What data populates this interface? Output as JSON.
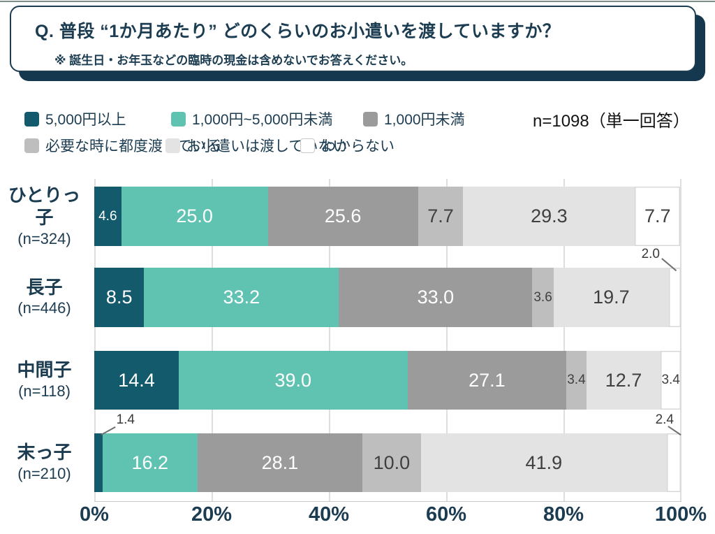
{
  "question_box": {
    "title": "Q. 普段 “1か月あたり” どのくらいのお小遣いを渡していますか？",
    "note": "※ 誕生日・お年玉などの臨時の現金は含めないでお答えください。"
  },
  "survey_note": "n=1098（単一回答）",
  "legend": {
    "items": [
      {
        "label": "5,000円以上",
        "color": "#135a6d",
        "bordered": false
      },
      {
        "label": "1,000円~5,000円未満",
        "color": "#60c3b2",
        "bordered": false
      },
      {
        "label": "1,000円未満",
        "color": "#9b9b9b",
        "bordered": false
      },
      {
        "label": "必要な時に都度渡している",
        "color": "#bebebe",
        "bordered": false
      },
      {
        "label": "お小遣いは渡していない",
        "color": "#e3e3e3",
        "bordered": false
      },
      {
        "label": "わからない",
        "color": "#ffffff",
        "bordered": true
      }
    ]
  },
  "chart_data": {
    "type": "bar",
    "stacked": true,
    "orientation": "horizontal",
    "categories": [
      "ひとりっ子",
      "長子",
      "中間子",
      "末っ子"
    ],
    "category_n": [
      "(n=324)",
      "(n=446)",
      "(n=118)",
      "(n=210)"
    ],
    "series": [
      {
        "name": "5,000円以上",
        "color": "#135a6d",
        "values": [
          4.6,
          8.5,
          14.4,
          1.4
        ]
      },
      {
        "name": "1,000円~5,000円未満",
        "color": "#60c3b2",
        "values": [
          25.0,
          33.2,
          39.0,
          16.2
        ]
      },
      {
        "name": "1,000円未満",
        "color": "#9b9b9b",
        "values": [
          25.6,
          33.0,
          27.1,
          28.1
        ]
      },
      {
        "name": "必要な時に都度渡している",
        "color": "#bebebe",
        "values": [
          7.7,
          3.6,
          3.4,
          10.0
        ]
      },
      {
        "name": "お小遣いは渡していない",
        "color": "#e3e3e3",
        "values": [
          29.3,
          19.7,
          12.7,
          41.9
        ]
      },
      {
        "name": "わからない",
        "color": "#ffffff",
        "values": [
          7.7,
          2.0,
          3.4,
          2.4
        ]
      }
    ],
    "callouts": [
      {
        "row": 1,
        "series": 5,
        "value": "2.0"
      },
      {
        "row": 3,
        "series": 0,
        "value": "1.4"
      },
      {
        "row": 3,
        "series": 5,
        "value": "2.4"
      }
    ],
    "x_ticks": [
      "0%",
      "20%",
      "40%",
      "60%",
      "80%",
      "100%"
    ],
    "xlim": [
      0,
      100
    ],
    "grid": true,
    "legend_position": "top"
  },
  "colors": {
    "text_dark_navy": "#1c3c51",
    "box_shadow": "#16384e",
    "gridline": "#dedede",
    "label_on_dark": "#ffffff",
    "label_on_light": "#404040"
  }
}
